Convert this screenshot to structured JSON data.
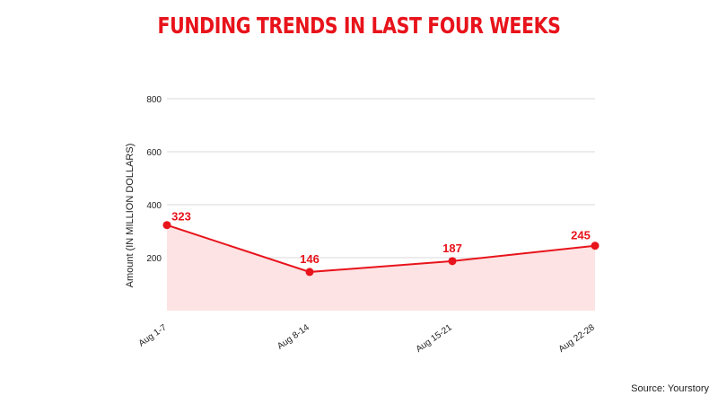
{
  "colors": {
    "title": "#e8131b",
    "line": "#e8131b",
    "fill": "#fde3e3",
    "grid": "#d9d9d9"
  },
  "source": "Source: Yourstory",
  "chart_data": {
    "type": "area",
    "title": "FUNDING TRENDS IN LAST FOUR WEEKS",
    "xlabel": "",
    "ylabel": "Amount (IN MILLION DOLLARS)",
    "categories": [
      "Aug 1-7",
      "Aug 8-14",
      "Aug 15-21",
      "Aug 22-28"
    ],
    "series": [
      {
        "values": [
          323,
          146,
          187,
          245
        ],
        "data_labels": [
          "323",
          "146",
          "187",
          "245"
        ]
      }
    ],
    "ylim": [
      0,
      800
    ],
    "yticks": [
      200,
      400,
      600,
      800
    ],
    "grid": true,
    "legend": "none"
  }
}
